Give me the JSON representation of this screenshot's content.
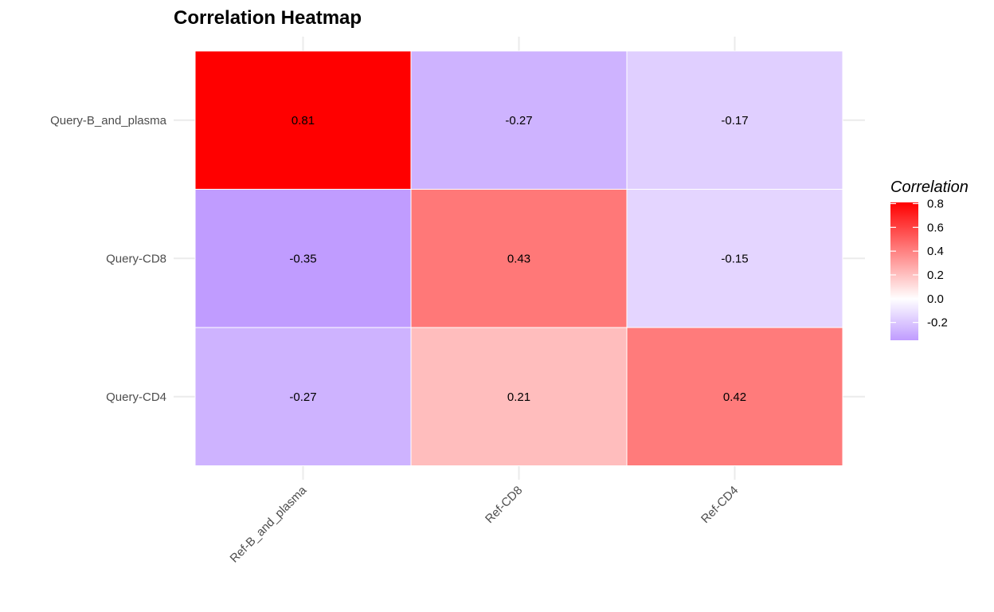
{
  "chart_data": {
    "type": "heatmap",
    "title": "Correlation Heatmap",
    "xlabel": "",
    "ylabel": "",
    "x_categories": [
      "Ref-B_and_plasma",
      "Ref-CD8",
      "Ref-CD4"
    ],
    "y_categories": [
      "Query-B_and_plasma",
      "Query-CD8",
      "Query-CD4"
    ],
    "values": [
      [
        0.81,
        -0.27,
        -0.17
      ],
      [
        -0.35,
        0.43,
        -0.15
      ],
      [
        -0.27,
        0.21,
        0.42
      ]
    ],
    "value_labels": [
      [
        "0.81",
        "-0.27",
        "-0.17"
      ],
      [
        "-0.35",
        "0.43",
        "-0.15"
      ],
      [
        "-0.27",
        "0.21",
        "0.42"
      ]
    ],
    "legend": {
      "title": "Correlation",
      "placement": "right",
      "range": [
        -0.35,
        0.81
      ],
      "ticks": [
        0.8,
        0.6,
        0.4,
        0.2,
        0.0,
        -0.2
      ],
      "tick_labels": [
        "0.8",
        "0.6",
        "0.4",
        "0.2",
        "0.0",
        "-0.2"
      ]
    },
    "colors": {
      "low": "#c09cff",
      "mid": "#ffffff",
      "high": "#ff0000",
      "midpoint": 0
    },
    "grid": true
  }
}
